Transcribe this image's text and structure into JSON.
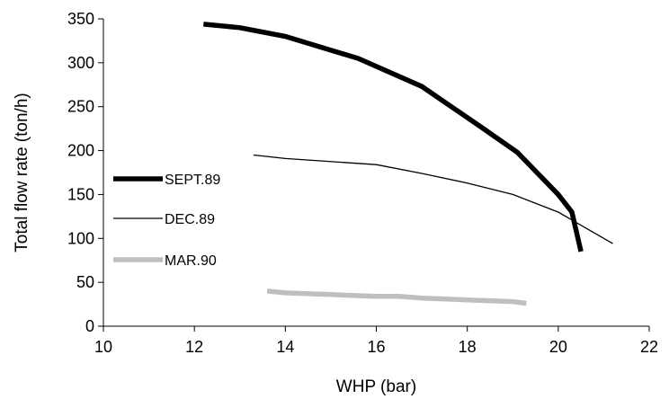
{
  "chart_data": {
    "type": "line",
    "title": "",
    "xlabel": "WHP (bar)",
    "ylabel": "Total flow rate (ton/h)",
    "xlim": [
      10,
      22
    ],
    "ylim": [
      0,
      350
    ],
    "xticks": [
      10,
      12,
      14,
      16,
      18,
      20,
      22
    ],
    "yticks": [
      0,
      50,
      100,
      150,
      200,
      250,
      300,
      350
    ],
    "grid": false,
    "legend_position": "left",
    "series": [
      {
        "name": "SEPT.89",
        "color": "#000000",
        "style": "thick",
        "x": [
          12.2,
          13.0,
          14.0,
          15.6,
          17.0,
          18.3,
          19.1,
          20.0,
          20.3,
          20.5
        ],
        "y": [
          344,
          340,
          330,
          305,
          273,
          227,
          198,
          150,
          130,
          85
        ]
      },
      {
        "name": "DEC.89",
        "color": "#000000",
        "style": "thin",
        "x": [
          13.3,
          14.0,
          16.0,
          17.0,
          18.0,
          19.0,
          20.0,
          21.2
        ],
        "y": [
          195,
          191,
          184,
          174,
          163,
          150,
          130,
          94
        ]
      },
      {
        "name": "MAR.90",
        "color": "#bfbfbf",
        "style": "thick",
        "x": [
          13.6,
          14.0,
          15.0,
          16.0,
          16.5,
          17.0,
          18.0,
          19.0,
          19.3
        ],
        "y": [
          40,
          38,
          36,
          34,
          34,
          32,
          30,
          28,
          26
        ]
      }
    ]
  }
}
